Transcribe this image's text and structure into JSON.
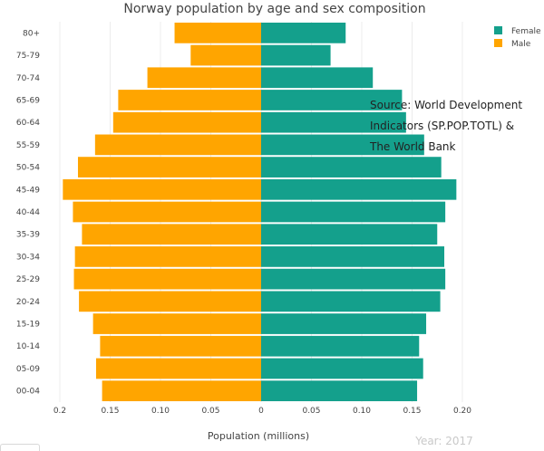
{
  "chart_data": {
    "type": "bar",
    "title": "Norway population by age and sex composition",
    "xlabel": "Population (millions)",
    "ylabel": "",
    "orientation": "horizontal-diverging",
    "categories": [
      "00-04",
      "05-09",
      "10-14",
      "15-19",
      "20-24",
      "25-29",
      "30-34",
      "35-39",
      "40-44",
      "45-49",
      "50-54",
      "55-59",
      "60-64",
      "65-69",
      "70-74",
      "75-79",
      "80+"
    ],
    "series": [
      {
        "name": "Female",
        "color": "#14a08c",
        "values": [
          0.155,
          0.161,
          0.157,
          0.164,
          0.178,
          0.183,
          0.182,
          0.175,
          0.183,
          0.194,
          0.179,
          0.162,
          0.144,
          0.14,
          0.111,
          0.069,
          0.084
        ]
      },
      {
        "name": "Male",
        "color": "#ffa500",
        "values": [
          0.158,
          0.164,
          0.16,
          0.167,
          0.181,
          0.186,
          0.185,
          0.178,
          0.187,
          0.197,
          0.182,
          0.165,
          0.147,
          0.142,
          0.113,
          0.07,
          0.086
        ]
      }
    ],
    "xlim": [
      -0.2,
      0.2
    ],
    "xticks": [
      {
        "value": -0.2,
        "label": "0.2"
      },
      {
        "value": -0.15,
        "label": "0.15"
      },
      {
        "value": -0.1,
        "label": "0.10"
      },
      {
        "value": -0.05,
        "label": "0.05"
      },
      {
        "value": 0,
        "label": "0"
      },
      {
        "value": 0.05,
        "label": "0.05"
      },
      {
        "value": 0.1,
        "label": "0.10"
      },
      {
        "value": 0.15,
        "label": "0.15"
      },
      {
        "value": 0.2,
        "label": "0.20"
      }
    ],
    "grid": true,
    "legend_position": "top-right"
  },
  "annotations": {
    "source_lines": [
      "Source: World Development",
      "Indicators (SP.POP.TOTL) &",
      "The World Bank"
    ],
    "year": "Year: 2017"
  }
}
